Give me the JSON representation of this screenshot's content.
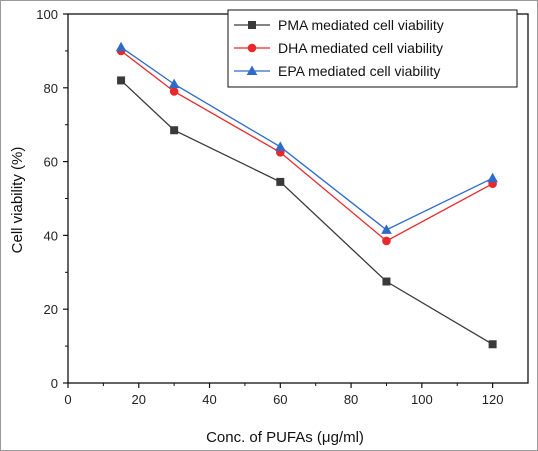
{
  "chart_data": {
    "type": "line",
    "title": "",
    "xlabel": "Conc. of PUFAs (μg/ml)",
    "ylabel": "Cell viability (%)",
    "xlim": [
      0,
      130
    ],
    "ylim": [
      0,
      100
    ],
    "xticks": [
      0,
      20,
      40,
      60,
      80,
      100,
      120
    ],
    "yticks": [
      0,
      20,
      40,
      60,
      80,
      100
    ],
    "x": [
      15,
      30,
      60,
      90,
      120
    ],
    "legend_position": "top-right",
    "grid": false,
    "series": [
      {
        "name": "PMA mediated cell viability",
        "values": [
          82,
          68.5,
          54.5,
          27.5,
          10.5
        ],
        "color": "#3a3a3a",
        "marker": "square"
      },
      {
        "name": "DHA mediated cell viability",
        "values": [
          90,
          79,
          62.5,
          38.5,
          54
        ],
        "color": "#e8282b",
        "marker": "circle"
      },
      {
        "name": "EPA mediated cell viability",
        "values": [
          91,
          81,
          64,
          41.5,
          55.5
        ],
        "color": "#2d6bc9",
        "marker": "triangle"
      }
    ]
  }
}
